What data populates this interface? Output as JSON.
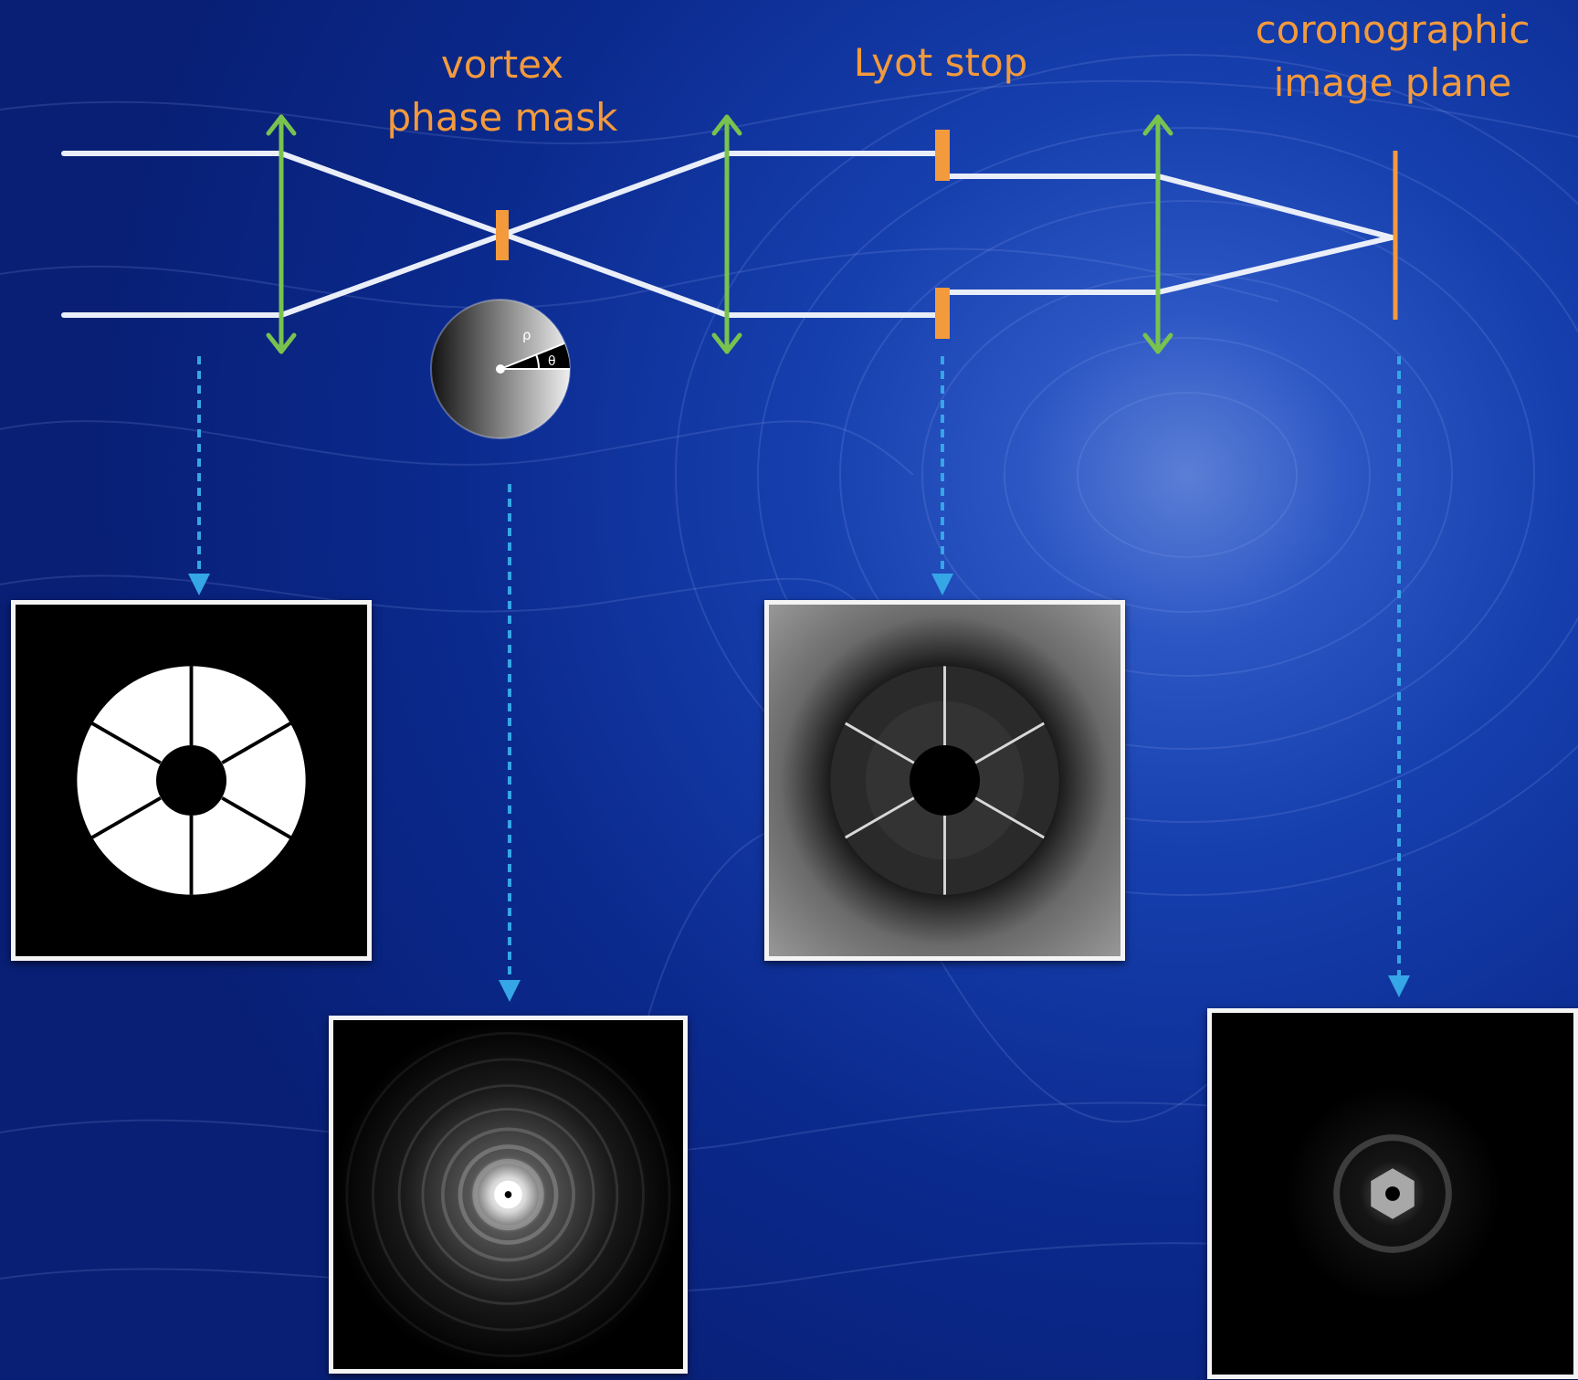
{
  "labels": {
    "vortex_line1": "vortex",
    "vortex_line2": "phase mask",
    "lyot": "Lyot stop",
    "coro_line1": "coronographic",
    "coro_line2": "image plane"
  },
  "inset": {
    "rho": "ρ",
    "theta": "θ"
  },
  "colors": {
    "beam": "#e9eef8",
    "lens": "#79c24f",
    "element": "#f39a3c",
    "arrow": "#35a6e6",
    "label": "#f39a3c"
  },
  "icons": {
    "lens": "double-headed-arrow-icon",
    "pointer": "dashed-down-arrow-icon"
  }
}
